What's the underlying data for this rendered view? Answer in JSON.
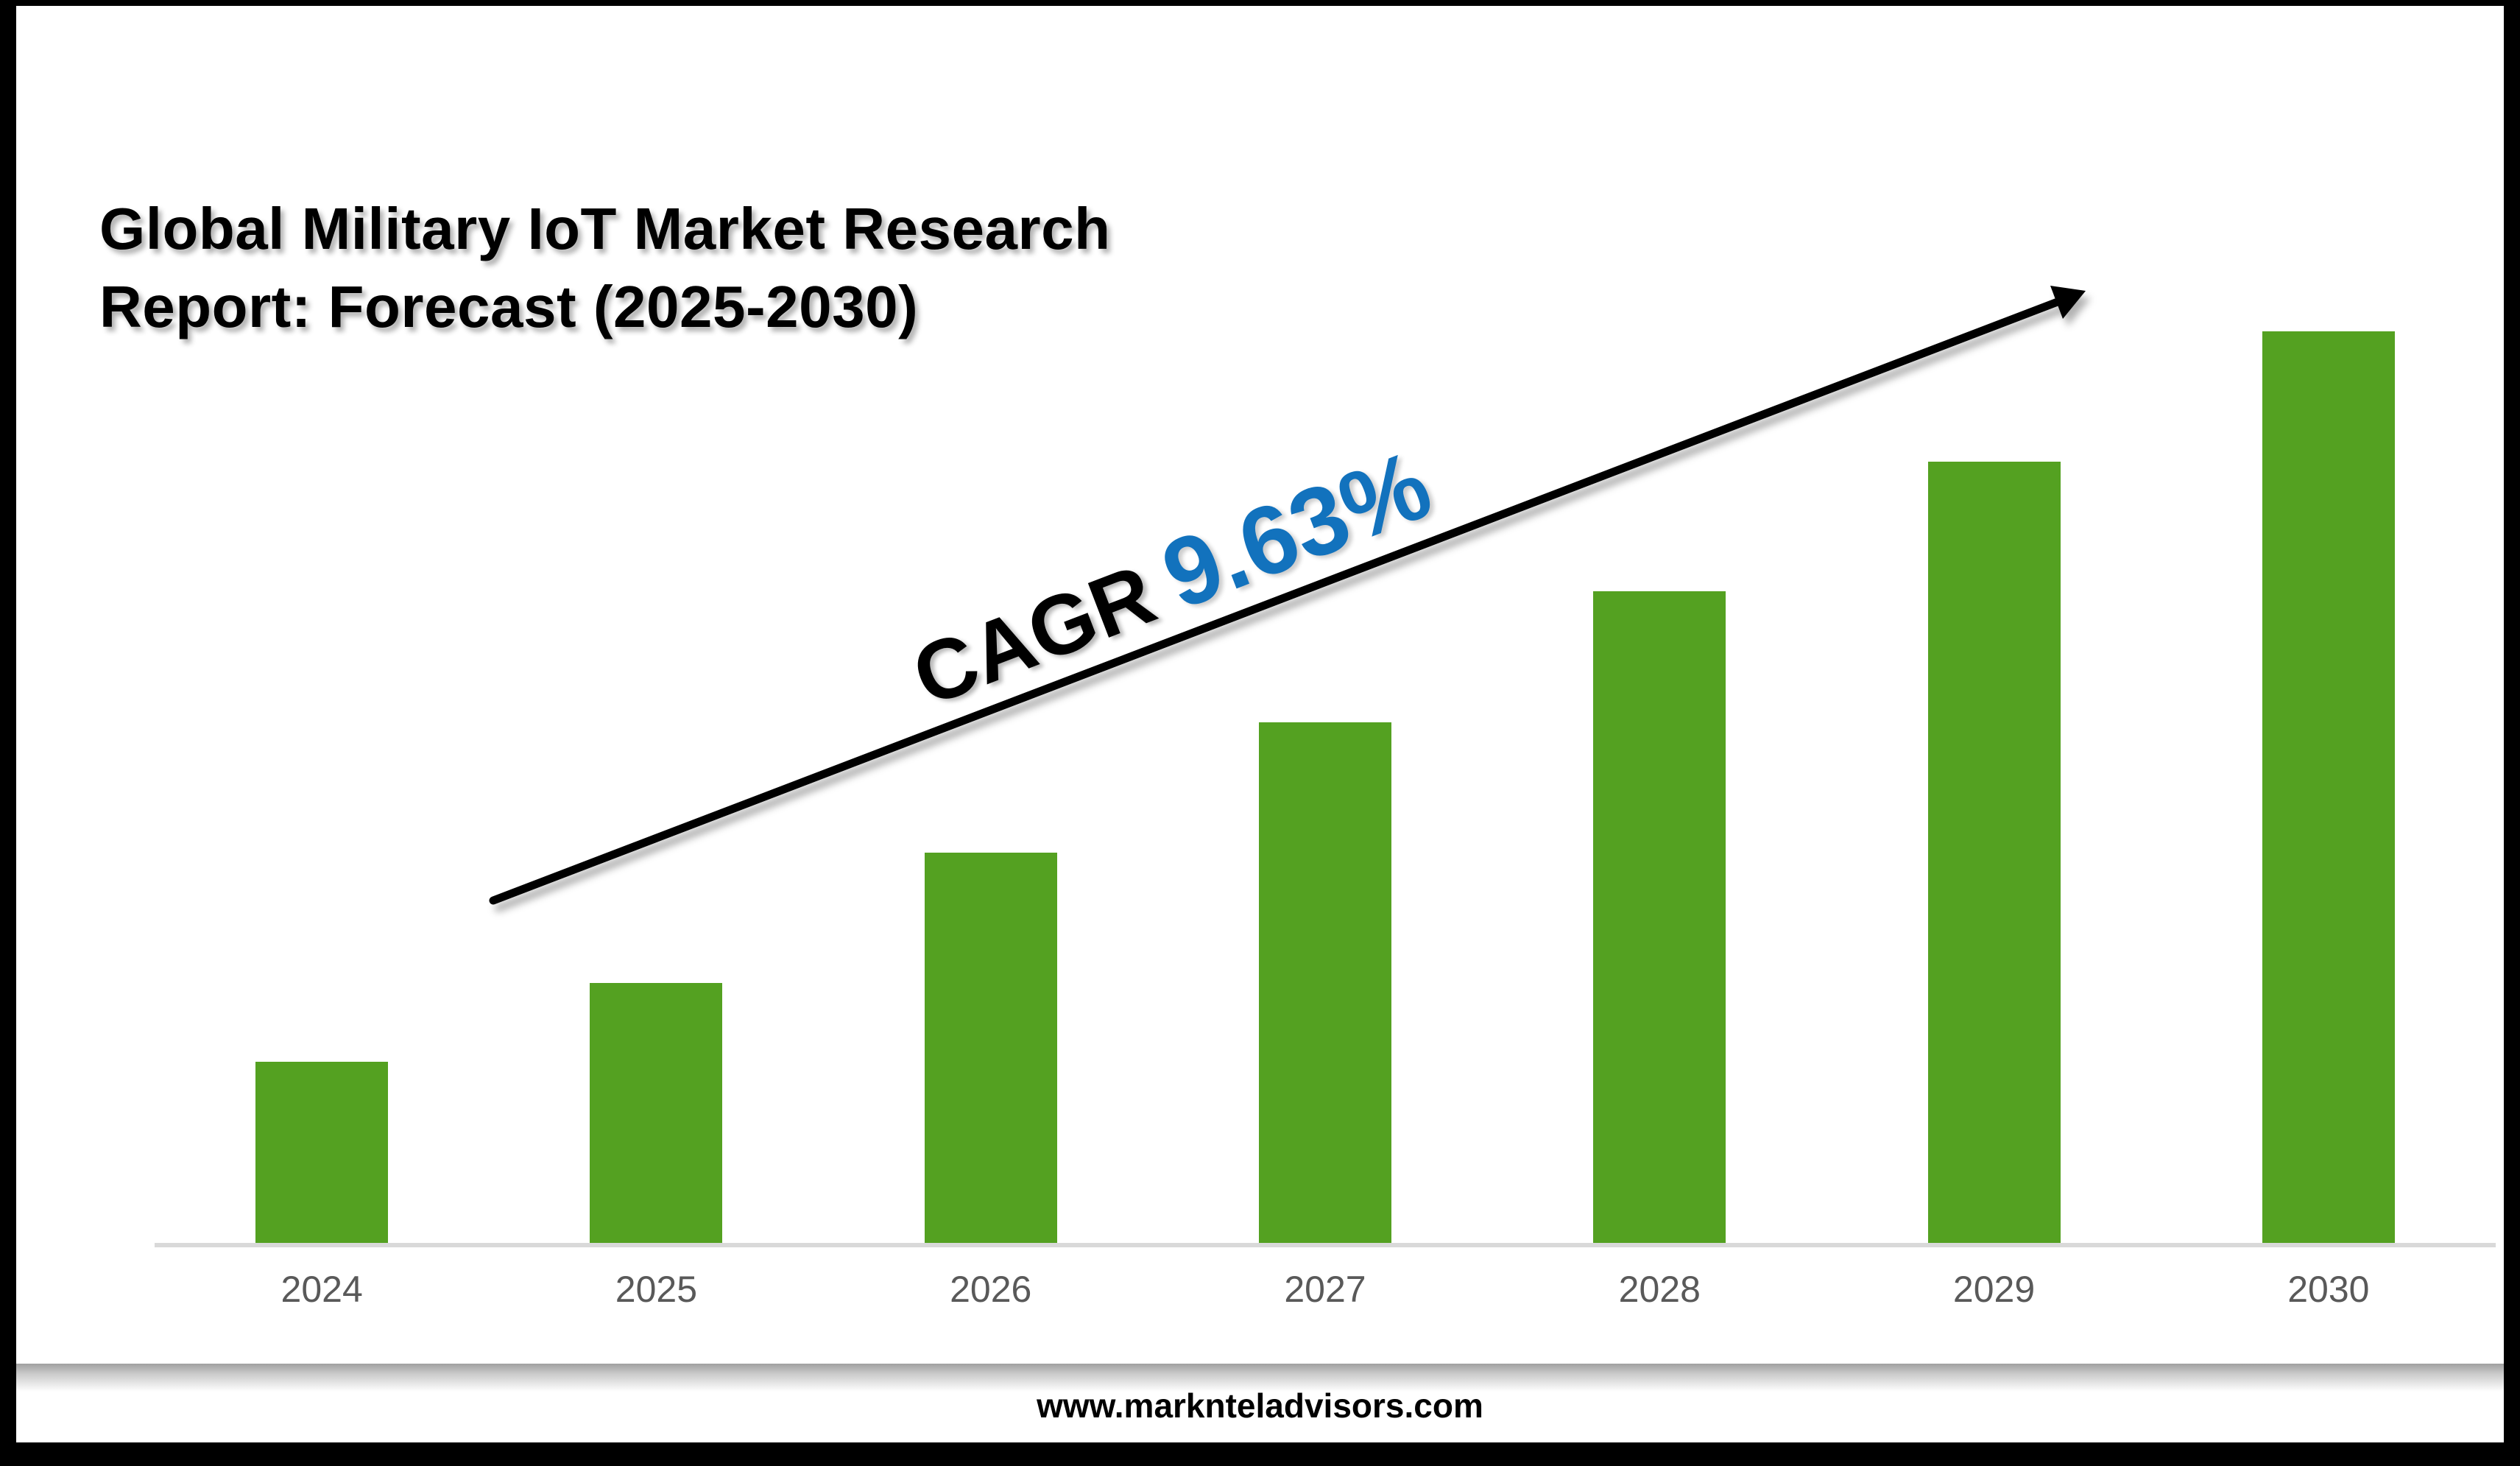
{
  "title": "Global Military IoT Market Research Report: Forecast (2025-2030)",
  "cagr": {
    "label": "CAGR",
    "value": "9.63%"
  },
  "footer": {
    "website": "www.marknteladvisors.com"
  },
  "colors": {
    "bar_green": "#54a121",
    "cagr_blue": "#1272bd",
    "axis_label_gray": "#595959",
    "baseline_gray": "#d9d9d9",
    "frame_black": "#000000"
  },
  "chart_data": {
    "type": "bar",
    "title": "Global Military IoT Market Research Report: Forecast (2025-2030)",
    "categories": [
      "2024",
      "2025",
      "2026",
      "2027",
      "2028",
      "2029",
      "2030"
    ],
    "values_relative_pct_of_max": [
      19.9,
      28.5,
      42.8,
      57.1,
      71.5,
      85.7,
      100
    ],
    "series_note": "No numeric axis or data labels shown; bar heights estimated as % of tallest (2030) bar",
    "xlabel": "",
    "ylabel": "",
    "y_axis_shown": false,
    "grid": false,
    "legend": false,
    "bar_color": "#54a121",
    "annotation": "CAGR 9.63% with rising trend arrow"
  }
}
